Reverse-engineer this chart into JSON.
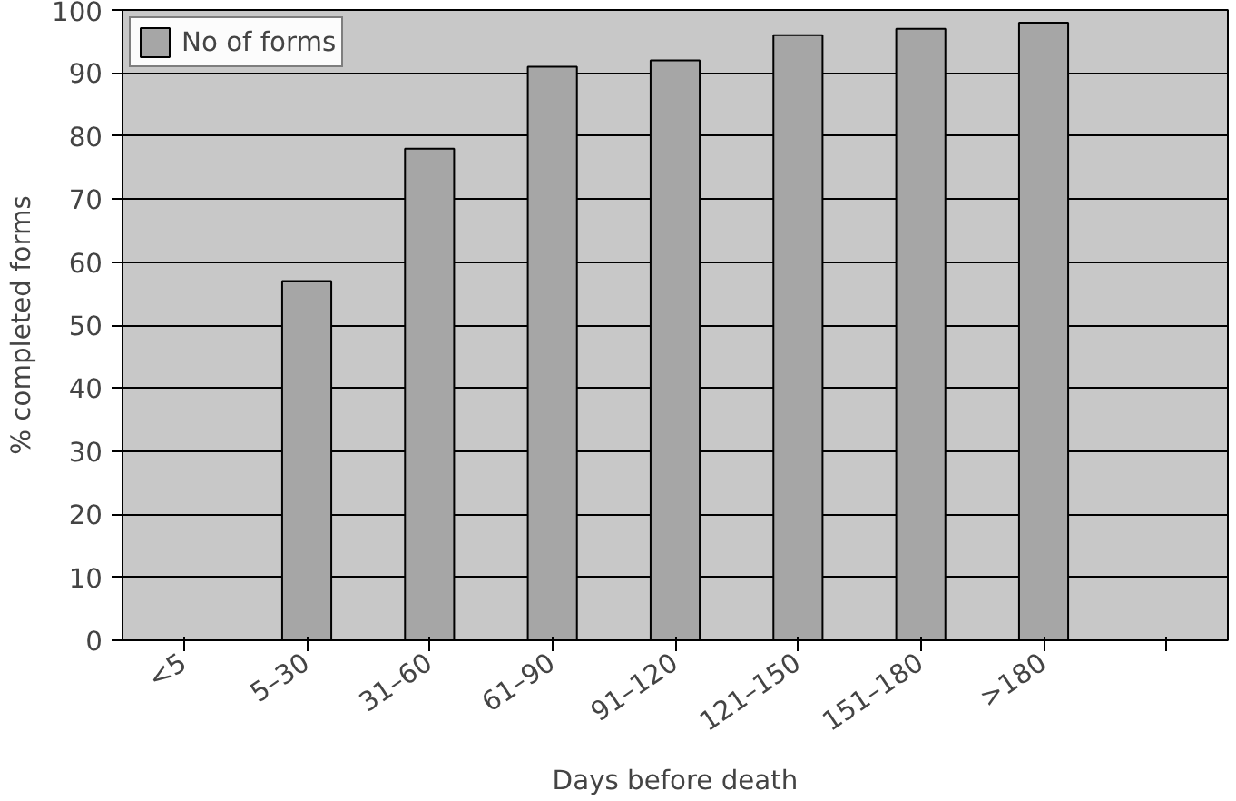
{
  "chart_data": {
    "type": "bar",
    "xlabel": "Days before death",
    "ylabel": "% completed forms",
    "categories": [
      "<5",
      "5–30",
      "31–60",
      "61–90",
      "91–120",
      "121–150",
      "151–180",
      ">180",
      null
    ],
    "series": [
      {
        "name": "No of forms",
        "color": "#a6a6a6",
        "values": [
          null,
          57,
          78,
          91,
          92,
          96,
          97,
          98,
          null
        ]
      }
    ],
    "ylim": [
      0,
      100
    ],
    "yticks": [
      0,
      10,
      20,
      30,
      40,
      50,
      60,
      70,
      80,
      90,
      100
    ],
    "grid": "y",
    "legend": "top left"
  }
}
